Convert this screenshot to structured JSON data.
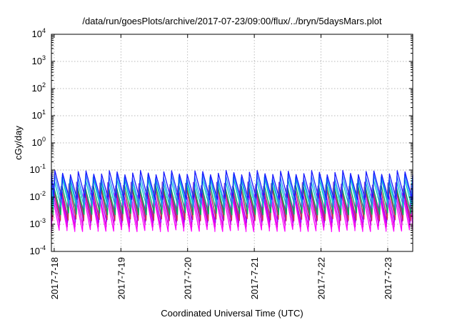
{
  "chart_data": {
    "type": "line",
    "title": "/data/run/goesPlots/archive/2017-07-23/09:00/flux/../bryn/5daysMars.plot",
    "xlabel": "Coordinated Universal Time (UTC)",
    "ylabel": "cGy/day",
    "yscale": "log",
    "ylim": [
      0.0001,
      10000
    ],
    "xlim": [
      "2017-07-17T23:00",
      "2017-07-23T09:00"
    ],
    "grid": true,
    "legend": "none",
    "y_ticks": [
      {
        "base": "10",
        "exp": "-4"
      },
      {
        "base": "10",
        "exp": "-3"
      },
      {
        "base": "10",
        "exp": "-2"
      },
      {
        "base": "10",
        "exp": "-1"
      },
      {
        "base": "10",
        "exp": "0"
      },
      {
        "base": "10",
        "exp": "1"
      },
      {
        "base": "10",
        "exp": "2"
      },
      {
        "base": "10",
        "exp": "3"
      },
      {
        "base": "10",
        "exp": "4"
      }
    ],
    "x_ticks": [
      {
        "label": "2017-7-18",
        "date": "2017-07-18T00:00"
      },
      {
        "label": "2017-7-19",
        "date": "2017-07-19T00:00"
      },
      {
        "label": "2017-7-20",
        "date": "2017-07-20T00:00"
      },
      {
        "label": "2017-7-21",
        "date": "2017-07-21T00:00"
      },
      {
        "label": "2017-7-22",
        "date": "2017-07-22T00:00"
      },
      {
        "label": "2017-7-23",
        "date": "2017-07-23T00:00"
      }
    ],
    "oscillation_period_hours": 2.8,
    "series": [
      {
        "color": "#ff00ff",
        "peak": 0.012,
        "trough": 0.0006
      },
      {
        "color": "#e000e0",
        "peak": 0.015,
        "trough": 0.0009
      },
      {
        "color": "#a000ff",
        "peak": 0.02,
        "trough": 0.0013
      },
      {
        "color": "#8a2be2",
        "peak": 0.03,
        "trough": 0.002
      },
      {
        "color": "#c83050",
        "peak": 0.022,
        "trough": 0.0015
      },
      {
        "color": "#00b050",
        "peak": 0.028,
        "trough": 0.0025
      },
      {
        "color": "#00c8c8",
        "peak": 0.045,
        "trough": 0.0045
      },
      {
        "color": "#1e90ff",
        "peak": 0.06,
        "trough": 0.006
      },
      {
        "color": "#1a1aff",
        "peak": 0.08,
        "trough": 0.009
      }
    ]
  }
}
